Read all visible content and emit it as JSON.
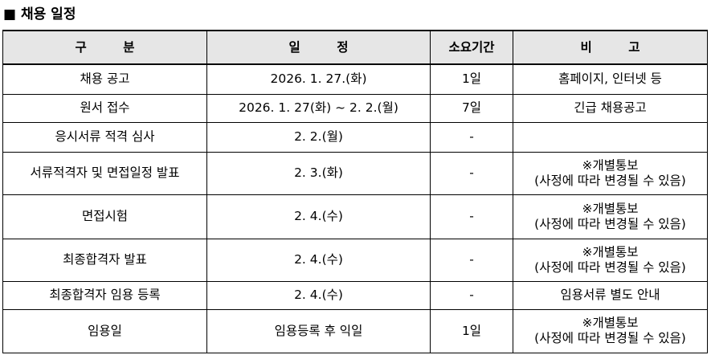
{
  "header": {
    "title": "■ 채용 일정"
  },
  "table": {
    "columns": [
      "구 분",
      "일 정",
      "소요기간",
      "비 고"
    ],
    "rows": [
      {
        "category": "채용 공고",
        "schedule": "2026. 1. 27.(화)",
        "duration": "1일",
        "remarks": [
          "홈페이지, 인터넷 등"
        ]
      },
      {
        "category": "원서 접수",
        "schedule": "2026. 1. 27(화) ~ 2. 2.(월)",
        "duration": "7일",
        "remarks": [
          "긴급 채용공고"
        ]
      },
      {
        "category": "응시서류 적격 심사",
        "schedule": "2. 2.(월)",
        "duration": "-",
        "remarks": []
      },
      {
        "category": "서류적격자 및 면접일정 발표",
        "schedule": "2. 3.(화)",
        "duration": "-",
        "remarks": [
          "※개별통보",
          "(사정에 따라 변경될 수 있음)"
        ]
      },
      {
        "category": "면접시험",
        "schedule": "2. 4.(수)",
        "duration": "-",
        "remarks": [
          "※개별통보",
          "(사정에 따라 변경될 수 있음)"
        ]
      },
      {
        "category": "최종합격자 발표",
        "schedule": "2. 4.(수)",
        "duration": "-",
        "remarks": [
          "※개별통보",
          "(사정에 따라 변경될 수 있음)"
        ]
      },
      {
        "category": "최종합격자 임용 등록",
        "schedule": "2. 4.(수)",
        "duration": "-",
        "remarks": [
          "임용서류 별도 안내"
        ]
      },
      {
        "category": "임용일",
        "schedule": "임용등록 후 익일",
        "duration": "1일",
        "remarks": [
          "※개별통보",
          "(사정에 따라 변경될 수 있음)"
        ]
      }
    ]
  }
}
